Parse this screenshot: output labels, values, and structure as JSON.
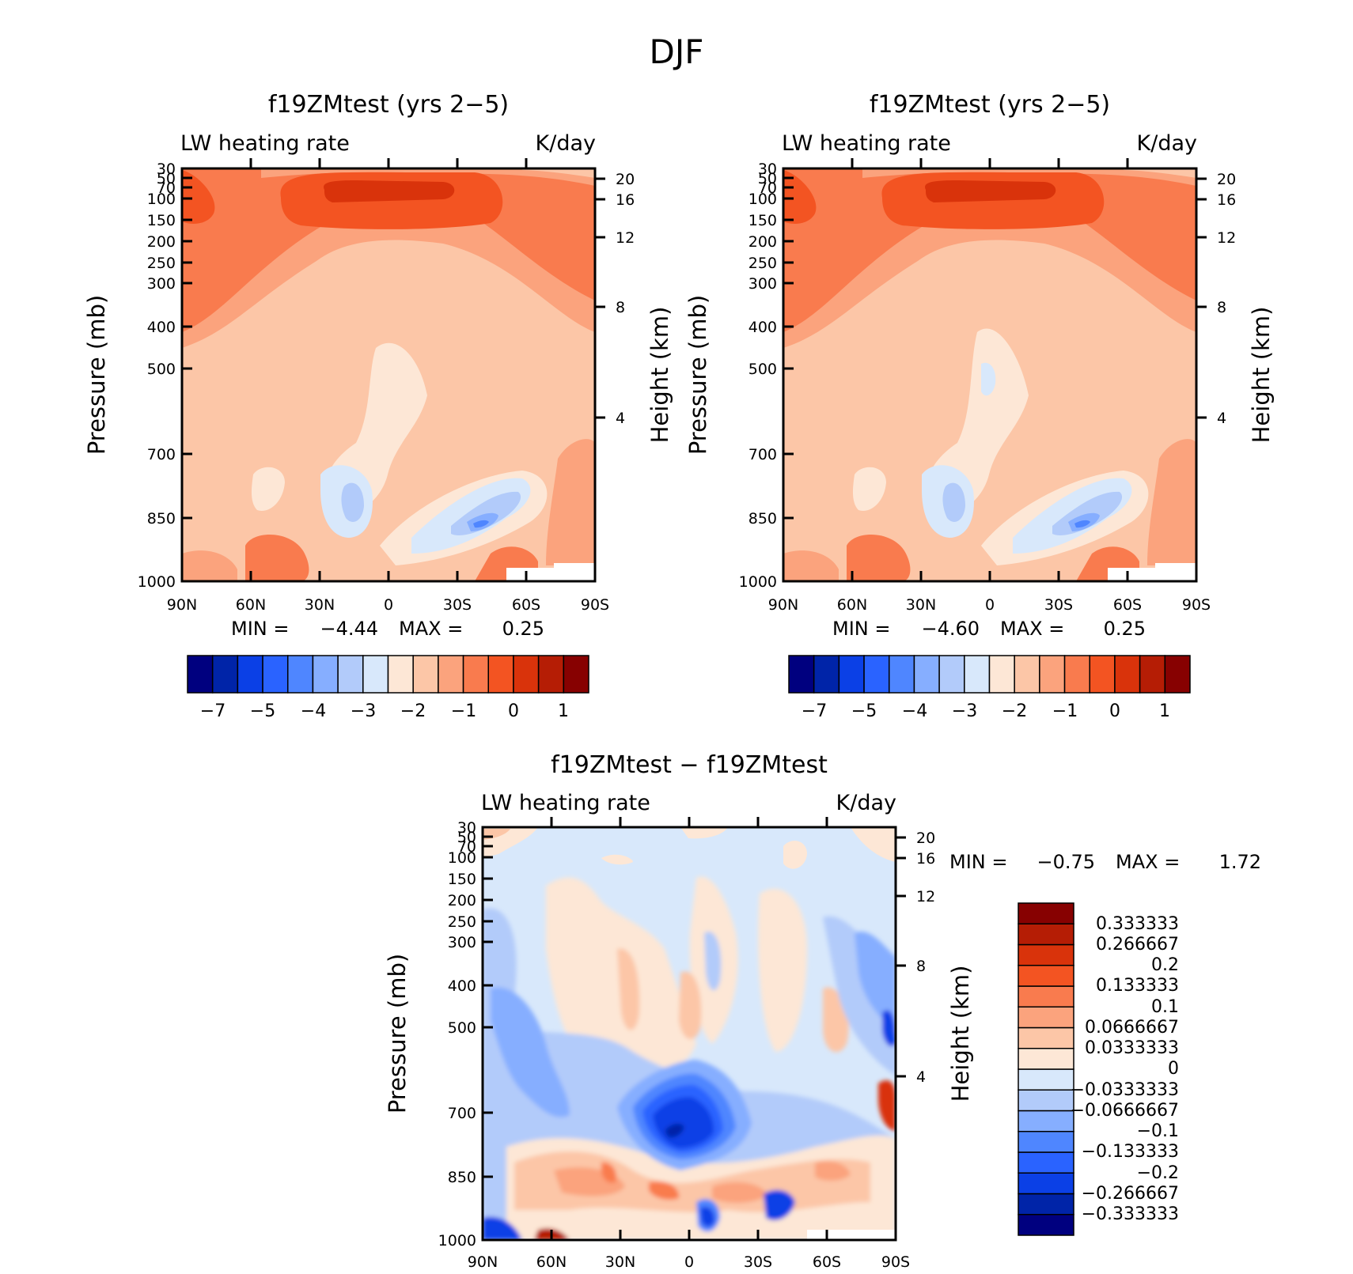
{
  "figure_title": "DJF",
  "chart_data": [
    {
      "type": "heatmap",
      "title": "f19ZMtest (yrs 2−5)",
      "subtitle_left": "LW heating rate",
      "subtitle_right": "K/day",
      "ylabel": "Pressure (mb)",
      "ylabel_right": "Height (km)",
      "x_tick_labels": [
        "90N",
        "60N",
        "30N",
        "0",
        "30S",
        "60S",
        "90S"
      ],
      "y_tick_labels": [
        "30",
        "50",
        "70",
        "100",
        "150",
        "200",
        "250",
        "300",
        "400",
        "500",
        "700",
        "850",
        "1000"
      ],
      "y_tick_values": [
        30,
        50,
        70,
        100,
        150,
        200,
        250,
        300,
        400,
        500,
        700,
        850,
        1000
      ],
      "y_scale": "log",
      "right_tick_labels": [
        "20",
        "16",
        "12",
        "8",
        "4"
      ],
      "right_tick_values": [
        20,
        16,
        12,
        8,
        4
      ],
      "min_label": "MIN =",
      "min_value": "−4.44",
      "max_label": "MAX =",
      "max_value": "0.25",
      "colorbar": {
        "orientation": "horizontal",
        "colors": [
          "#00007f",
          "#0024a8",
          "#0b40e6",
          "#2a63ff",
          "#4f86ff",
          "#86aeff",
          "#b2cbfa",
          "#d8e8fb",
          "#fde7d6",
          "#fcc6a7",
          "#fba37d",
          "#f97b4e",
          "#f35422",
          "#d9330b",
          "#b51d05",
          "#870101"
        ],
        "tick_labels": [
          "−7",
          "−5",
          "−4",
          "−3",
          "−2",
          "−1",
          "0",
          "1"
        ]
      }
    },
    {
      "type": "heatmap",
      "title": "f19ZMtest (yrs 2−5)",
      "subtitle_left": "LW heating rate",
      "subtitle_right": "K/day",
      "ylabel": "Pressure (mb)",
      "ylabel_right": "Height (km)",
      "x_tick_labels": [
        "90N",
        "60N",
        "30N",
        "0",
        "30S",
        "60S",
        "90S"
      ],
      "y_tick_labels": [
        "30",
        "50",
        "70",
        "100",
        "150",
        "200",
        "250",
        "300",
        "400",
        "500",
        "700",
        "850",
        "1000"
      ],
      "y_tick_values": [
        30,
        50,
        70,
        100,
        150,
        200,
        250,
        300,
        400,
        500,
        700,
        850,
        1000
      ],
      "y_scale": "log",
      "right_tick_labels": [
        "20",
        "16",
        "12",
        "8",
        "4"
      ],
      "right_tick_values": [
        20,
        16,
        12,
        8,
        4
      ],
      "min_label": "MIN =",
      "min_value": "−4.60",
      "max_label": "MAX =",
      "max_value": "0.25",
      "colorbar": {
        "orientation": "horizontal",
        "colors": [
          "#00007f",
          "#0024a8",
          "#0b40e6",
          "#2a63ff",
          "#4f86ff",
          "#86aeff",
          "#b2cbfa",
          "#d8e8fb",
          "#fde7d6",
          "#fcc6a7",
          "#fba37d",
          "#f97b4e",
          "#f35422",
          "#d9330b",
          "#b51d05",
          "#870101"
        ],
        "tick_labels": [
          "−7",
          "−5",
          "−4",
          "−3",
          "−2",
          "−1",
          "0",
          "1"
        ]
      }
    },
    {
      "type": "heatmap",
      "title": "f19ZMtest − f19ZMtest",
      "subtitle_left": "LW heating rate",
      "subtitle_right": "K/day",
      "ylabel": "Pressure (mb)",
      "ylabel_right": "Height (km)",
      "x_tick_labels": [
        "90N",
        "60N",
        "30N",
        "0",
        "30S",
        "60S",
        "90S"
      ],
      "y_tick_labels": [
        "30",
        "50",
        "70",
        "100",
        "150",
        "200",
        "250",
        "300",
        "400",
        "500",
        "700",
        "850",
        "1000"
      ],
      "y_tick_values": [
        30,
        50,
        70,
        100,
        150,
        200,
        250,
        300,
        400,
        500,
        700,
        850,
        1000
      ],
      "y_scale": "log",
      "right_tick_labels": [
        "20",
        "16",
        "12",
        "8",
        "4"
      ],
      "right_tick_values": [
        20,
        16,
        12,
        8,
        4
      ],
      "min_label": "MIN =",
      "min_value": "−0.75",
      "max_label": "MAX =",
      "max_value": "1.72",
      "colorbar": {
        "orientation": "vertical",
        "colors": [
          "#00007f",
          "#0024a8",
          "#0b40e6",
          "#2a63ff",
          "#4f86ff",
          "#86aeff",
          "#b2cbfa",
          "#d8e8fb",
          "#fde7d6",
          "#fcc6a7",
          "#fba37d",
          "#f97b4e",
          "#f35422",
          "#d9330b",
          "#b51d05",
          "#870101"
        ],
        "tick_labels": [
          "−0.333333",
          "−0.266667",
          "−0.2",
          "−0.133333",
          "−0.1",
          "−0.0666667",
          "−0.0333333",
          "0",
          "0.0333333",
          "0.0666667",
          "0.1",
          "0.133333",
          "0.2",
          "0.266667",
          "0.333333"
        ]
      }
    }
  ]
}
